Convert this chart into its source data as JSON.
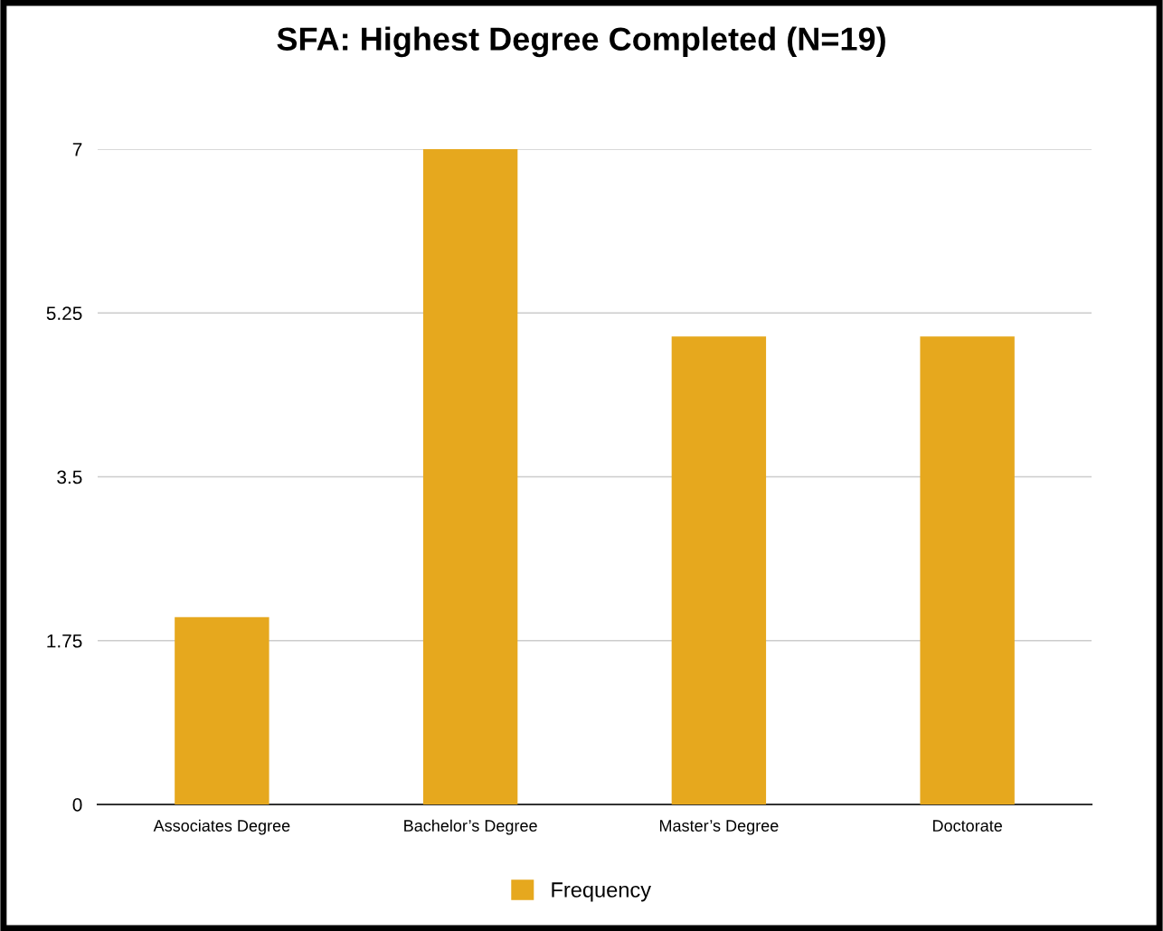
{
  "chart_data": {
    "type": "bar",
    "title": "SFA: Highest Degree Completed (N=19)",
    "categories": [
      "Associates Degree",
      "Bachelor’s Degree",
      "Master’s Degree",
      "Doctorate"
    ],
    "series": [
      {
        "name": "Frequency",
        "color": "#e6a81e",
        "values": [
          2,
          7,
          5,
          5
        ]
      }
    ],
    "ylim": [
      0,
      7
    ],
    "yticks": [
      0,
      1.75,
      3.5,
      5.25,
      7
    ],
    "grid": "y",
    "legend": "bottom"
  }
}
